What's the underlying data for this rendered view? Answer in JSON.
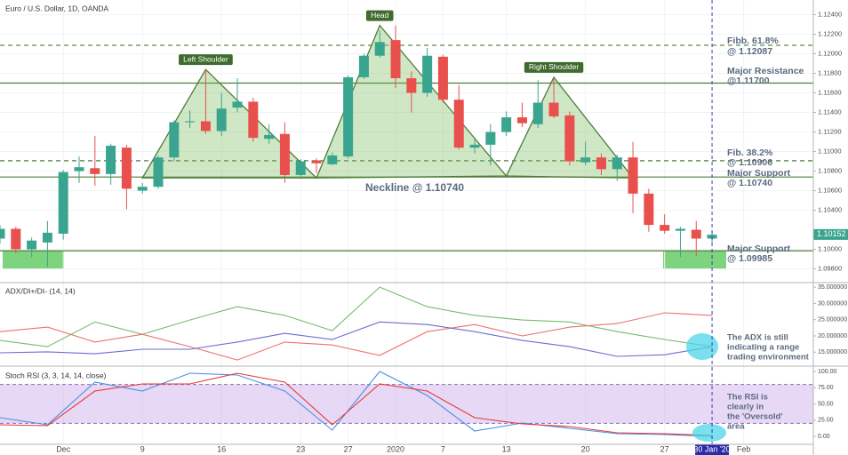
{
  "chart_data": [
    {
      "type": "candlestick",
      "title": "Euro / U.S. Dollar, 1D, OANDA",
      "open": [
        1.1011,
        1.1021,
        1.1,
        1.1007,
        1.1016,
        1.108,
        1.1083,
        1.1077,
        1.1104,
        1.106,
        1.1064,
        1.1094,
        1.113,
        1.1131,
        1.1121,
        1.1145,
        1.1151,
        1.1113,
        1.1118,
        1.1076,
        1.1091,
        1.1087,
        1.1095,
        1.1176,
        1.1198,
        1.1214,
        1.1175,
        1.116,
        1.1197,
        1.1153,
        1.1104,
        1.1107,
        1.112,
        1.1135,
        1.1128,
        1.115,
        1.1137,
        1.1089,
        1.1094,
        1.1082,
        1.1094,
        1.1057,
        1.1025,
        1.1019,
        1.102,
        1.1011
      ],
      "high": [
        1.1025,
        1.1023,
        1.1012,
        1.1029,
        1.1081,
        1.1095,
        1.1116,
        1.1108,
        1.1107,
        1.1068,
        1.1096,
        1.1132,
        1.1142,
        1.1184,
        1.116,
        1.1175,
        1.1155,
        1.1128,
        1.113,
        1.1092,
        1.1093,
        1.1099,
        1.1178,
        1.12,
        1.1224,
        1.1229,
        1.1182,
        1.1206,
        1.1199,
        1.1168,
        1.1114,
        1.1128,
        1.1141,
        1.115,
        1.1173,
        1.1174,
        1.1141,
        1.111,
        1.1098,
        1.1097,
        1.111,
        1.1062,
        1.1036,
        1.1023,
        1.1029,
        1.1019
      ],
      "low": [
        1.1006,
        1.0996,
        1.0992,
        1.0982,
        1.101,
        1.1068,
        1.1065,
        1.1066,
        1.1041,
        1.1057,
        1.1062,
        1.109,
        1.1124,
        1.1118,
        1.1116,
        1.114,
        1.111,
        1.1108,
        1.1068,
        1.1072,
        1.1078,
        1.1086,
        1.1093,
        1.1174,
        1.1196,
        1.1165,
        1.114,
        1.1156,
        1.115,
        1.1102,
        1.1098,
        1.1086,
        1.1116,
        1.1125,
        1.1124,
        1.1134,
        1.1086,
        1.1086,
        1.1076,
        1.107,
        1.1037,
        1.1018,
        1.1016,
        1.0992,
        1.0993,
        1.1006
      ],
      "close": [
        1.1021,
        1.1,
        1.1009,
        1.1017,
        1.1079,
        1.1084,
        1.1077,
        1.1106,
        1.1062,
        1.1064,
        1.1094,
        1.113,
        1.1131,
        1.1121,
        1.1144,
        1.1151,
        1.1114,
        1.1117,
        1.1076,
        1.109,
        1.1088,
        1.1096,
        1.1176,
        1.1198,
        1.1212,
        1.1175,
        1.116,
        1.1198,
        1.1153,
        1.1104,
        1.1107,
        1.112,
        1.1135,
        1.1129,
        1.115,
        1.1136,
        1.109,
        1.1094,
        1.1082,
        1.1094,
        1.1057,
        1.1025,
        1.1019,
        1.1021,
        1.1011,
        1.1015
      ],
      "up_color": "#3aa58e",
      "down_color": "#e8504d",
      "xlim": [
        0,
        51.4
      ],
      "xticks": [
        {
          "value": 4,
          "label": "Dec"
        },
        9,
        {
          "value": 14,
          "label": "16"
        },
        {
          "value": 19,
          "label": "23"
        },
        {
          "value": 22,
          "label": "27"
        },
        {
          "value": 25,
          "label": "2020"
        },
        {
          "value": 28,
          "label": "7"
        },
        {
          "value": 32,
          "label": "13"
        },
        {
          "value": 37,
          "label": "20"
        },
        {
          "value": 42,
          "label": "27"
        },
        {
          "value": 47,
          "label": "Feb"
        }
      ],
      "ylim": [
        1.0966,
        1.1255
      ],
      "yticks": [
        {
          "value": 1.124,
          "label": "1.12400"
        },
        {
          "value": 1.122,
          "label": "1.12200"
        },
        {
          "value": 1.12,
          "label": "1.12000"
        },
        {
          "value": 1.118,
          "label": "1.11800"
        },
        {
          "value": 1.116,
          "label": "1.11600"
        },
        {
          "value": 1.114,
          "label": "1.11400"
        },
        {
          "value": 1.112,
          "label": "1.11200"
        },
        {
          "value": 1.11,
          "label": "1.11000"
        },
        {
          "value": 1.108,
          "label": "1.10800"
        },
        {
          "value": 1.106,
          "label": "1.10600"
        },
        {
          "value": 1.104,
          "label": "1.10400"
        },
        {
          "value": 1.1,
          "label": "1.10000"
        },
        {
          "value": 1.098,
          "label": "1.09800"
        }
      ],
      "grid": true,
      "levels": [
        {
          "value": 1.12087,
          "dashed": true
        },
        {
          "value": 1.117,
          "dashed": false
        },
        {
          "value": 1.10906,
          "dashed": true
        },
        {
          "value": 1.1074,
          "dashed": false
        },
        {
          "value": 1.09985,
          "dashed": false
        }
      ],
      "level_color": "#4e7d3a",
      "patterns": [
        {
          "label": "Left Shoulder",
          "x": [
            9,
            13,
            20
          ],
          "y": [
            1.1073,
            1.1184,
            1.1073
          ]
        },
        {
          "label": "Head",
          "x": [
            20,
            24,
            32
          ],
          "y": [
            1.1073,
            1.1229,
            1.1075
          ]
        },
        {
          "label": "Right Shoulder",
          "x": [
            32,
            35,
            40
          ],
          "y": [
            1.1075,
            1.1176,
            1.1073
          ]
        }
      ],
      "pattern_color": "#4e7d3a",
      "last_price": 1.10152,
      "crosshair": {
        "x": 45,
        "label": "30 Jan '20"
      },
      "annotations": [
        [
          "Fibb. 61.8%",
          "@ 1.12087"
        ],
        [
          "Major Resistance",
          "@1.11700"
        ],
        [
          "Fib. 38.2%",
          "@ 1.10906"
        ],
        [
          "Major Support",
          "@ 1.10740"
        ],
        [
          "Major Support",
          "@ 1.09985"
        ]
      ],
      "neckline_label": "Neckline @ 1.10740"
    },
    {
      "type": "line",
      "title": "ADX/DI+/DI- (14, 14)",
      "x": [
        0,
        3,
        6,
        9,
        12,
        15,
        18,
        21,
        24,
        27,
        30,
        33,
        36,
        39,
        42,
        45
      ],
      "series": [
        {
          "color": "#74bd6c",
          "values": [
            18.6,
            16.7,
            24.3,
            20.5,
            24.9,
            29.0,
            26.3,
            21.6,
            35.0,
            29.0,
            26.3,
            24.9,
            24.3,
            21.3,
            18.9,
            16.7
          ]
        },
        {
          "color": "#ee7070",
          "values": [
            21.3,
            22.7,
            18.1,
            20.5,
            16.7,
            12.6,
            18.1,
            17.2,
            14.0,
            21.3,
            23.5,
            20.0,
            22.7,
            23.8,
            27.1,
            26.3
          ]
        },
        {
          "color": "#6b6bd3",
          "values": [
            14.8,
            15.1,
            14.5,
            15.9,
            15.9,
            18.1,
            20.8,
            18.9,
            24.3,
            23.5,
            21.3,
            18.6,
            16.7,
            13.7,
            14.2,
            16.7
          ]
        }
      ],
      "ylim": [
        10.7,
        36.4
      ],
      "yticks": [
        {
          "value": 35,
          "label": "35.000000"
        },
        {
          "value": 30,
          "label": "30.000000"
        },
        {
          "value": 25,
          "label": "25.000000"
        },
        {
          "value": 20,
          "label": "20.000000"
        },
        {
          "value": 15,
          "label": "15.000000"
        }
      ],
      "annotation": [
        "The ADX is still",
        "indicating a range",
        "trading environment"
      ]
    },
    {
      "type": "line",
      "title": "Stoch RSI (3, 3, 14, 14, close)",
      "x": [
        0,
        3,
        6,
        9,
        12,
        15,
        18,
        21,
        24,
        27,
        30,
        33,
        36,
        39,
        42,
        45
      ],
      "series": [
        {
          "color": "#4a90e2",
          "values": [
            28.8,
            17.8,
            83.6,
            69.9,
            97.3,
            94.5,
            69.9,
            9.6,
            100,
            63.0,
            8.2,
            20.5,
            12.3,
            4.1,
            2.7,
            0
          ]
        },
        {
          "color": "#e53935",
          "values": [
            17.8,
            16.4,
            69.9,
            80.8,
            80.8,
            97.3,
            83.6,
            17.8,
            80.8,
            69.9,
            28.8,
            19.2,
            15.1,
            5.5,
            4.1,
            1.4
          ]
        }
      ],
      "ylim": [
        -12.3,
        108.2
      ],
      "yticks": [
        {
          "value": 100,
          "label": "100.00"
        },
        {
          "value": 75,
          "label": "75.00"
        },
        {
          "value": 50,
          "label": "50.00"
        },
        {
          "value": 25,
          "label": "25.00"
        },
        {
          "value": 0,
          "label": "0.00"
        }
      ],
      "band": {
        "from": 20,
        "to": 80,
        "color": "#b98ee6"
      },
      "annotation": [
        "The RSI is",
        "clearly in",
        "the 'Oversold'",
        "area"
      ]
    }
  ]
}
